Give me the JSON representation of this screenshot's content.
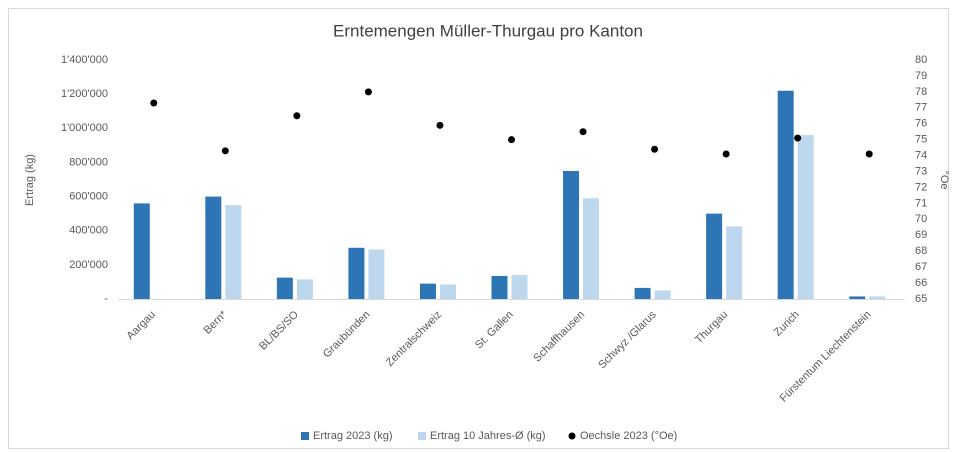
{
  "chart_data": {
    "type": "bar",
    "title": "Erntemengen Müller-Thurgau pro Kanton",
    "y_label": "Ertrag (kg)",
    "y2_label": "°Oe",
    "categories": [
      "Aargau",
      "Bern*",
      "BL/BS/SO",
      "Graubünden",
      "Zentralschweiz",
      "St. Gallen",
      "Schaffhausen",
      "Schwyz /Glarus",
      "Thurgau",
      "Zurich",
      "Fürstentum Liechtenstein"
    ],
    "series": [
      {
        "name": "Ertrag 2023 (kg)",
        "color": "#2e75b6",
        "values": [
          560000,
          600000,
          125000,
          300000,
          90000,
          135000,
          750000,
          65000,
          500000,
          1220000,
          15000
        ]
      },
      {
        "name": "Ertrag 10 Jahres-Ø (kg)",
        "color": "#bdd7ee",
        "values": [
          null,
          550000,
          115000,
          290000,
          85000,
          140000,
          590000,
          50000,
          425000,
          960000,
          15000
        ]
      },
      {
        "name": "Oechsle 2023 (°Oe)",
        "color": "#000000",
        "type": "scatter",
        "axis": "y2",
        "values": [
          77.3,
          74.3,
          76.5,
          78.0,
          75.9,
          75.0,
          75.5,
          74.4,
          74.1,
          75.1,
          74.1
        ]
      }
    ],
    "ylim": [
      0,
      1400000
    ],
    "yticks": [
      {
        "value": 0,
        "label": "-"
      },
      {
        "value": 200000,
        "label": "200'000"
      },
      {
        "value": 400000,
        "label": "400'000"
      },
      {
        "value": 600000,
        "label": "600'000"
      },
      {
        "value": 800000,
        "label": "800'000"
      },
      {
        "value": 1000000,
        "label": "1'000'000"
      },
      {
        "value": 1200000,
        "label": "1'200'000"
      },
      {
        "value": 1400000,
        "label": "1'400'000"
      }
    ],
    "y2lim": [
      65,
      80
    ],
    "y2ticks": [
      65,
      66,
      67,
      68,
      69,
      70,
      71,
      72,
      73,
      74,
      75,
      76,
      77,
      78,
      79,
      80
    ],
    "legend": "bottom"
  }
}
